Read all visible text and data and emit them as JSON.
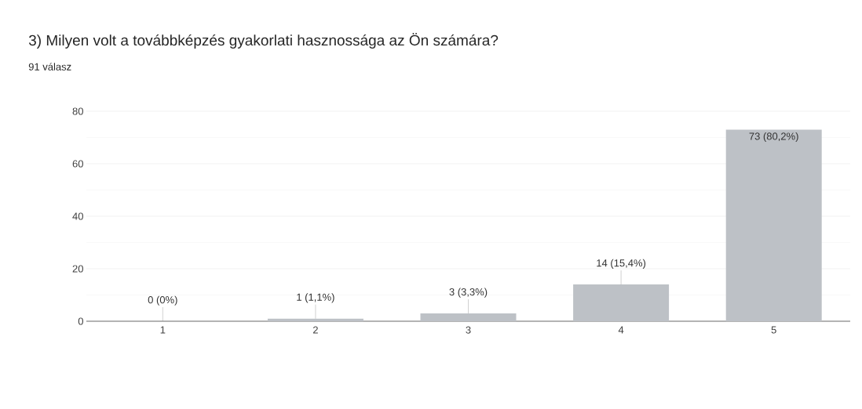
{
  "chart_data": {
    "type": "bar",
    "title": "3) Milyen volt a továbbképzés gyakorlati hasznossága az Ön számára?",
    "subtitle": "91 válasz",
    "categories": [
      "1",
      "2",
      "3",
      "4",
      "5"
    ],
    "values": [
      0,
      1,
      3,
      14,
      73
    ],
    "value_labels": [
      "0 (0%)",
      "1 (1,1%)",
      "3 (3,3%)",
      "14 (15,4%)",
      "73 (80,2%)"
    ],
    "color": "#bdc1c6",
    "ylim": [
      0,
      80
    ],
    "yticks": [
      0,
      20,
      40,
      60,
      80
    ],
    "grid": "y"
  }
}
